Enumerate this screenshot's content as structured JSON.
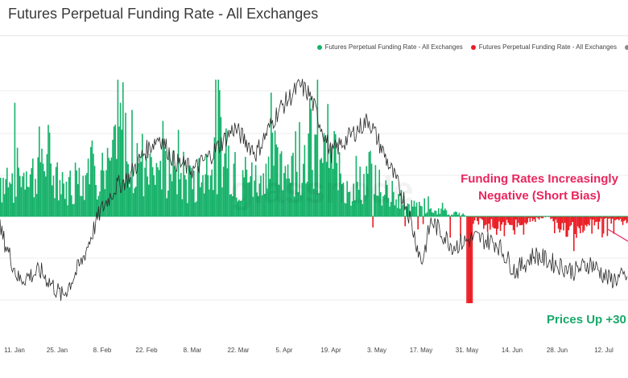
{
  "header": {
    "title": "Futures Perpetual Funding Rate - All Exchanges"
  },
  "legend": {
    "items": [
      {
        "label": "Futures Perpetual Funding Rate - All Exchanges",
        "color": "#17b26a"
      },
      {
        "label": "Futures Perpetual Funding Rate - All Exchanges",
        "color": "#ea1c24"
      },
      {
        "label": "",
        "color": "#8a8a8a"
      }
    ]
  },
  "annotations": {
    "negative_line1": "Funding Rates Increasingly",
    "negative_line2": "Negative (Short Bias)",
    "prices_up": "Prices Up +30"
  },
  "watermark": "glassnode",
  "chart_data": {
    "type": "area",
    "title": "Futures Perpetual Funding Rate - All Exchanges",
    "x_tick_labels": [
      "11. Jan",
      "25. Jan",
      "8. Feb",
      "22. Feb",
      "8. Mar",
      "22. Mar",
      "5. Apr",
      "19. Apr",
      "3. May",
      "17. May",
      "31. May",
      "14. Jun",
      "28. Jun",
      "12. Jul"
    ],
    "x_range_days": [
      1,
      202
    ],
    "funding_rate_keypoints": {
      "note_units": "relative funding rate, positive = green, negative = red",
      "x_day": [
        1,
        8,
        15,
        22,
        29,
        36,
        39,
        43,
        50,
        57,
        64,
        71,
        78,
        85,
        92,
        99,
        106,
        113,
        120,
        127,
        134,
        141,
        148,
        155,
        162,
        169,
        176,
        183,
        190,
        197,
        202
      ],
      "value": [
        0.06,
        0.08,
        0.09,
        0.05,
        0.1,
        0.07,
        0.16,
        0.09,
        0.1,
        0.07,
        0.06,
        0.13,
        0.06,
        0.08,
        0.1,
        0.12,
        0.1,
        0.05,
        0.07,
        0.03,
        0.02,
        0.01,
        0.005,
        -0.01,
        -0.02,
        -0.01,
        0.0,
        -0.03,
        -0.015,
        -0.005,
        -0.01
      ]
    },
    "price_keypoints": {
      "note_units": "relative BTC price level",
      "x_day": [
        1,
        7,
        14,
        21,
        27,
        33,
        38,
        42,
        47,
        52,
        57,
        63,
        69,
        76,
        83,
        90,
        97,
        100,
        107,
        113,
        119,
        125,
        131,
        136,
        139,
        146,
        153,
        160,
        166,
        172,
        178,
        185,
        190,
        196,
        202
      ],
      "value": [
        0.5,
        0.2,
        0.25,
        0.1,
        0.3,
        0.6,
        0.75,
        0.8,
        0.95,
        1.05,
        0.9,
        0.85,
        0.95,
        1.1,
        0.95,
        1.2,
        1.35,
        1.3,
        0.95,
        1.05,
        1.15,
        0.9,
        0.65,
        0.3,
        0.55,
        0.4,
        0.45,
        0.42,
        0.25,
        0.35,
        0.3,
        0.25,
        0.3,
        0.2,
        0.22
      ]
    }
  }
}
